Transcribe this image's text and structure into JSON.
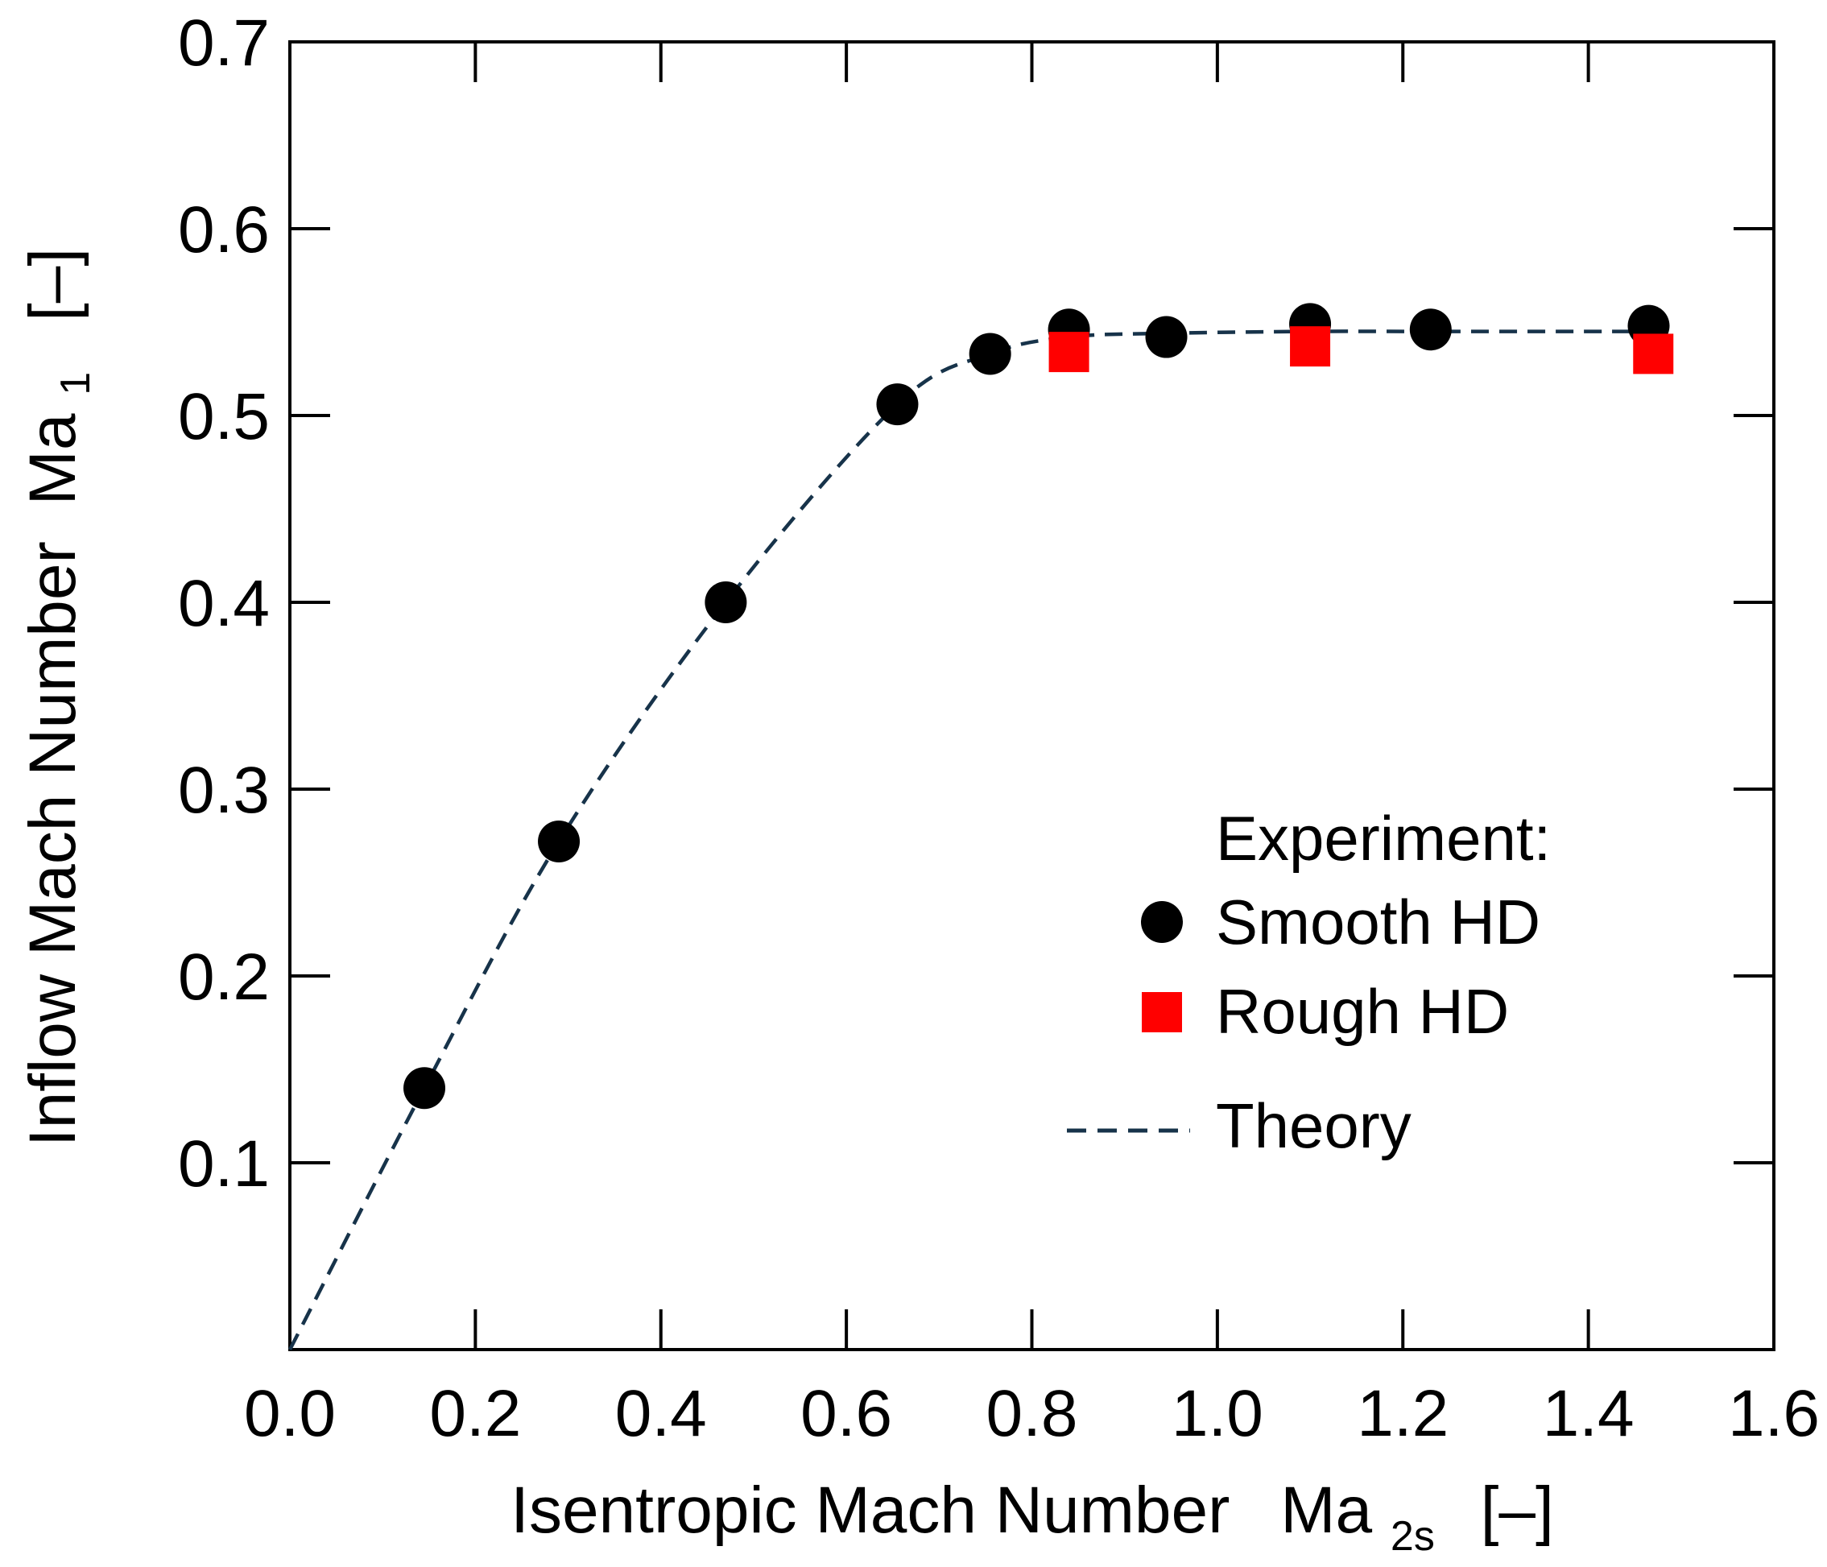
{
  "chart_data": {
    "type": "scatter",
    "xlabel": "Isentropic Mach Number",
    "xlabel_symbol": "Ma",
    "xlabel_subscript": "2s",
    "xlabel_unit": "[–]",
    "ylabel": "Inflow Mach Number",
    "ylabel_symbol": "Ma",
    "ylabel_subscript": "1",
    "ylabel_unit": "[–]",
    "xlim": [
      0.0,
      1.6
    ],
    "ylim": [
      0.0,
      0.7
    ],
    "xticks": [
      "0.0",
      "0.2",
      "0.4",
      "0.6",
      "0.8",
      "1.0",
      "1.2",
      "1.4",
      "1.6"
    ],
    "yticks": [
      "0.1",
      "0.2",
      "0.3",
      "0.4",
      "0.5",
      "0.6",
      "0.7"
    ],
    "legend_title": "Experiment:",
    "legend_position": "lower-right",
    "series": [
      {
        "name": "Smooth HD",
        "marker": "circle",
        "color": "#000000",
        "x": [
          0.145,
          0.29,
          0.47,
          0.655,
          0.755,
          0.84,
          0.945,
          1.1,
          1.23,
          1.465
        ],
        "y": [
          0.14,
          0.272,
          0.4,
          0.506,
          0.533,
          0.546,
          0.542,
          0.549,
          0.546,
          0.548
        ]
      },
      {
        "name": "Rough HD",
        "marker": "square",
        "color": "#ff0000",
        "x": [
          0.84,
          1.1,
          1.47
        ],
        "y": [
          0.534,
          0.537,
          0.533
        ]
      },
      {
        "name": "Theory",
        "style": "dashed-line",
        "color": "#17334a",
        "x": [
          0.0,
          0.145,
          0.29,
          0.47,
          0.655,
          0.755,
          0.84,
          0.945,
          1.1,
          1.23,
          1.47
        ],
        "y": [
          0.0,
          0.14,
          0.272,
          0.4,
          0.506,
          0.533,
          0.542,
          0.544,
          0.545,
          0.545,
          0.545
        ]
      }
    ]
  }
}
